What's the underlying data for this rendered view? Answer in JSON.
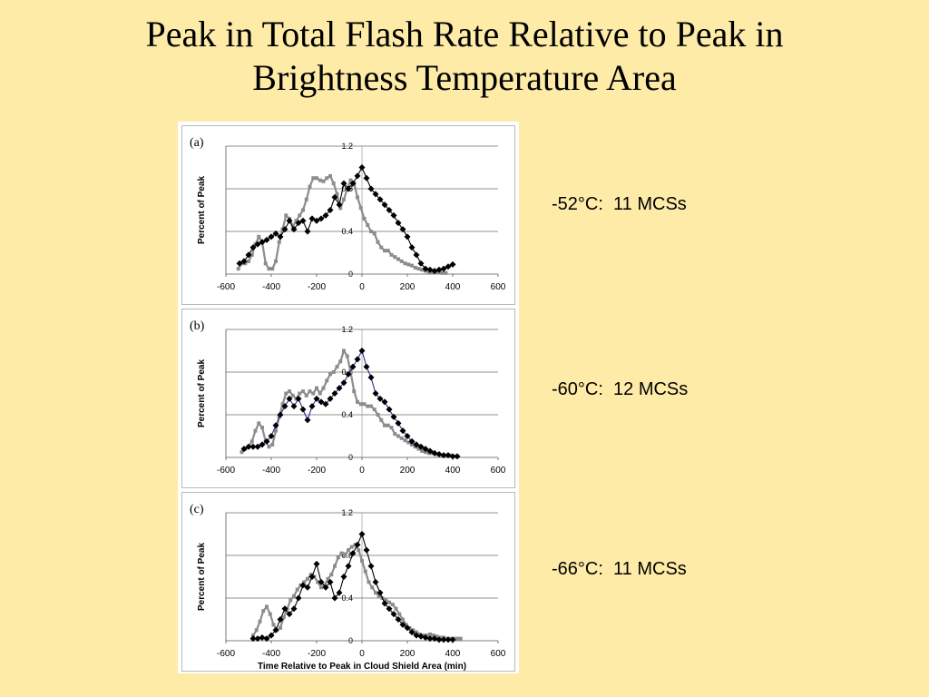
{
  "slide": {
    "title_line1": "Peak in Total Flash Rate Relative to Peak in",
    "title_line2": "Brightness Temperature Area"
  },
  "captions": [
    "-52°C:  11 MCSs",
    "-60°C:  12 MCSs",
    "-66°C:  11 MCSs"
  ],
  "colors": {
    "background": "#feeba8",
    "gray_series": "#8c8c8c",
    "black_series": "#000000",
    "blue_line_panel_b": "#2a2aa0"
  },
  "chart_data": [
    {
      "type": "line",
      "panel_label": "(a)",
      "ylabel": "Percent of Peak",
      "xlabel": "",
      "xlim": [
        -600,
        600
      ],
      "ylim": [
        0,
        1.2
      ],
      "x_ticks": [
        "-600",
        "-400",
        "-200",
        "0",
        "200",
        "400",
        "600"
      ],
      "y_ticks": [
        "0",
        "0.4",
        "0.8",
        "1.2"
      ],
      "grid": true,
      "series": [
        {
          "color": "gray",
          "marker": "square",
          "x": [
            -545,
            -530,
            -515,
            -500,
            -485,
            -470,
            -455,
            -440,
            -425,
            -410,
            -395,
            -380,
            -365,
            -350,
            -335,
            -320,
            -305,
            -290,
            -275,
            -260,
            -245,
            -230,
            -215,
            -200,
            -185,
            -170,
            -155,
            -140,
            -125,
            -110,
            -95,
            -80,
            -65,
            -50,
            -35,
            -20,
            -5,
            10,
            25,
            40,
            55,
            70,
            85,
            100,
            115,
            130,
            145,
            160,
            175,
            190,
            205,
            220,
            235,
            250,
            265,
            280,
            295,
            310,
            325,
            340,
            355,
            370
          ],
          "y": [
            0.05,
            0.1,
            0.1,
            0.12,
            0.18,
            0.28,
            0.35,
            0.3,
            0.1,
            0.05,
            0.05,
            0.12,
            0.3,
            0.42,
            0.55,
            0.52,
            0.45,
            0.5,
            0.55,
            0.6,
            0.7,
            0.82,
            0.9,
            0.9,
            0.88,
            0.87,
            0.9,
            0.92,
            0.85,
            0.75,
            0.62,
            0.7,
            0.8,
            0.88,
            0.85,
            0.72,
            0.62,
            0.52,
            0.46,
            0.4,
            0.38,
            0.3,
            0.25,
            0.22,
            0.22,
            0.18,
            0.16,
            0.14,
            0.12,
            0.1,
            0.09,
            0.08,
            0.06,
            0.05,
            0.04,
            0.03,
            0.02,
            0.02,
            0.02,
            0.02,
            0.01,
            0.01
          ]
        },
        {
          "color": "black",
          "marker": "diamond",
          "x": [
            -540,
            -520,
            -500,
            -480,
            -460,
            -440,
            -420,
            -400,
            -380,
            -360,
            -340,
            -320,
            -300,
            -280,
            -260,
            -240,
            -220,
            -200,
            -180,
            -160,
            -140,
            -120,
            -100,
            -80,
            -60,
            -40,
            -20,
            0,
            20,
            40,
            60,
            80,
            100,
            120,
            140,
            160,
            180,
            200,
            220,
            240,
            260,
            280,
            300,
            320,
            340,
            360,
            380,
            400
          ],
          "y": [
            0.1,
            0.12,
            0.18,
            0.25,
            0.28,
            0.3,
            0.32,
            0.35,
            0.38,
            0.35,
            0.42,
            0.5,
            0.42,
            0.48,
            0.5,
            0.4,
            0.52,
            0.5,
            0.52,
            0.55,
            0.6,
            0.72,
            0.65,
            0.85,
            0.8,
            0.85,
            0.92,
            1.0,
            0.9,
            0.8,
            0.75,
            0.7,
            0.65,
            0.6,
            0.55,
            0.48,
            0.42,
            0.35,
            0.25,
            0.18,
            0.1,
            0.05,
            0.04,
            0.03,
            0.04,
            0.05,
            0.07,
            0.09
          ]
        }
      ]
    },
    {
      "type": "line",
      "panel_label": "(b)",
      "ylabel": "Percent of Peak",
      "xlabel": "",
      "xlim": [
        -600,
        600
      ],
      "ylim": [
        0,
        1.2
      ],
      "x_ticks": [
        "-600",
        "-400",
        "-200",
        "0",
        "200",
        "400",
        "600"
      ],
      "y_ticks": [
        "0",
        "0.4",
        "0.8",
        "1.2"
      ],
      "grid": true,
      "series": [
        {
          "color": "gray",
          "marker": "square",
          "x": [
            -530,
            -515,
            -500,
            -485,
            -470,
            -455,
            -440,
            -425,
            -410,
            -395,
            -380,
            -365,
            -350,
            -335,
            -320,
            -305,
            -290,
            -275,
            -260,
            -245,
            -230,
            -215,
            -200,
            -185,
            -170,
            -155,
            -140,
            -125,
            -110,
            -95,
            -80,
            -65,
            -50,
            -35,
            -20,
            -5,
            10,
            25,
            40,
            55,
            70,
            85,
            100,
            115,
            130,
            145,
            160,
            175,
            190,
            205,
            220,
            235,
            250,
            265,
            280,
            295,
            310,
            325,
            340,
            355,
            370,
            385,
            400,
            415
          ],
          "y": [
            0.05,
            0.08,
            0.1,
            0.15,
            0.25,
            0.32,
            0.28,
            0.15,
            0.1,
            0.12,
            0.25,
            0.38,
            0.5,
            0.6,
            0.62,
            0.58,
            0.55,
            0.6,
            0.62,
            0.58,
            0.62,
            0.6,
            0.65,
            0.6,
            0.65,
            0.72,
            0.78,
            0.8,
            0.85,
            0.9,
            1.0,
            0.95,
            0.8,
            0.62,
            0.52,
            0.5,
            0.5,
            0.48,
            0.48,
            0.45,
            0.4,
            0.35,
            0.3,
            0.3,
            0.28,
            0.22,
            0.2,
            0.18,
            0.16,
            0.14,
            0.12,
            0.1,
            0.08,
            0.06,
            0.05,
            0.04,
            0.04,
            0.03,
            0.03,
            0.02,
            0.02,
            0.02,
            0.01,
            0.01
          ]
        },
        {
          "color": "black",
          "marker": "diamond",
          "x": [
            -520,
            -500,
            -480,
            -460,
            -440,
            -420,
            -400,
            -380,
            -360,
            -340,
            -320,
            -300,
            -280,
            -260,
            -240,
            -220,
            -200,
            -180,
            -160,
            -140,
            -120,
            -100,
            -80,
            -60,
            -40,
            -20,
            0,
            20,
            40,
            60,
            80,
            100,
            120,
            140,
            160,
            180,
            200,
            220,
            240,
            260,
            280,
            300,
            320,
            340,
            360,
            380,
            400,
            420
          ],
          "y": [
            0.08,
            0.1,
            0.1,
            0.1,
            0.12,
            0.15,
            0.2,
            0.3,
            0.4,
            0.48,
            0.55,
            0.48,
            0.55,
            0.45,
            0.35,
            0.48,
            0.55,
            0.52,
            0.5,
            0.55,
            0.6,
            0.65,
            0.7,
            0.78,
            0.85,
            0.92,
            1.0,
            0.85,
            0.75,
            0.6,
            0.55,
            0.52,
            0.45,
            0.38,
            0.32,
            0.25,
            0.2,
            0.15,
            0.12,
            0.1,
            0.08,
            0.06,
            0.04,
            0.03,
            0.02,
            0.02,
            0.01,
            0.01
          ]
        }
      ]
    },
    {
      "type": "line",
      "panel_label": "(c)",
      "ylabel": "Percent of Peak",
      "xlabel": "Time Relative to Peak in Cloud Shield Area (min)",
      "xlim": [
        -600,
        600
      ],
      "ylim": [
        0,
        1.2
      ],
      "x_ticks": [
        "-600",
        "-400",
        "-200",
        "0",
        "200",
        "400",
        "600"
      ],
      "y_ticks": [
        "0",
        "0.4",
        "0.8",
        "1.2"
      ],
      "grid": true,
      "series": [
        {
          "color": "gray",
          "marker": "square",
          "x": [
            -480,
            -465,
            -450,
            -435,
            -420,
            -405,
            -390,
            -375,
            -360,
            -345,
            -330,
            -315,
            -300,
            -285,
            -270,
            -255,
            -240,
            -225,
            -210,
            -195,
            -180,
            -165,
            -150,
            -135,
            -120,
            -105,
            -90,
            -75,
            -60,
            -45,
            -30,
            -15,
            0,
            15,
            30,
            45,
            60,
            75,
            90,
            105,
            120,
            135,
            150,
            165,
            180,
            195,
            210,
            225,
            240,
            255,
            270,
            285,
            300,
            315,
            330,
            345,
            360,
            375,
            390,
            405,
            420,
            435
          ],
          "y": [
            0.05,
            0.1,
            0.18,
            0.28,
            0.32,
            0.25,
            0.15,
            0.1,
            0.12,
            0.22,
            0.3,
            0.38,
            0.42,
            0.48,
            0.52,
            0.55,
            0.58,
            0.62,
            0.6,
            0.55,
            0.5,
            0.52,
            0.58,
            0.62,
            0.7,
            0.78,
            0.82,
            0.8,
            0.85,
            0.88,
            0.9,
            0.85,
            0.75,
            0.65,
            0.55,
            0.5,
            0.45,
            0.42,
            0.4,
            0.38,
            0.36,
            0.34,
            0.3,
            0.25,
            0.2,
            0.15,
            0.12,
            0.1,
            0.08,
            0.06,
            0.05,
            0.05,
            0.06,
            0.05,
            0.04,
            0.03,
            0.03,
            0.02,
            0.02,
            0.02,
            0.02,
            0.02
          ]
        },
        {
          "color": "black",
          "marker": "diamond",
          "x": [
            -480,
            -460,
            -440,
            -420,
            -400,
            -380,
            -360,
            -340,
            -320,
            -300,
            -280,
            -260,
            -240,
            -220,
            -200,
            -180,
            -160,
            -140,
            -120,
            -100,
            -80,
            -60,
            -40,
            -20,
            0,
            20,
            40,
            60,
            80,
            100,
            120,
            140,
            160,
            180,
            200,
            220,
            240,
            260,
            280,
            300,
            320,
            340,
            360,
            380,
            400
          ],
          "y": [
            0.02,
            0.02,
            0.03,
            0.02,
            0.05,
            0.1,
            0.2,
            0.3,
            0.25,
            0.3,
            0.4,
            0.52,
            0.5,
            0.6,
            0.72,
            0.55,
            0.5,
            0.55,
            0.4,
            0.45,
            0.6,
            0.7,
            0.82,
            0.9,
            1.0,
            0.85,
            0.7,
            0.55,
            0.45,
            0.35,
            0.3,
            0.25,
            0.2,
            0.15,
            0.12,
            0.08,
            0.05,
            0.04,
            0.03,
            0.02,
            0.02,
            0.01,
            0.01,
            0.01,
            0.01
          ]
        }
      ]
    }
  ]
}
